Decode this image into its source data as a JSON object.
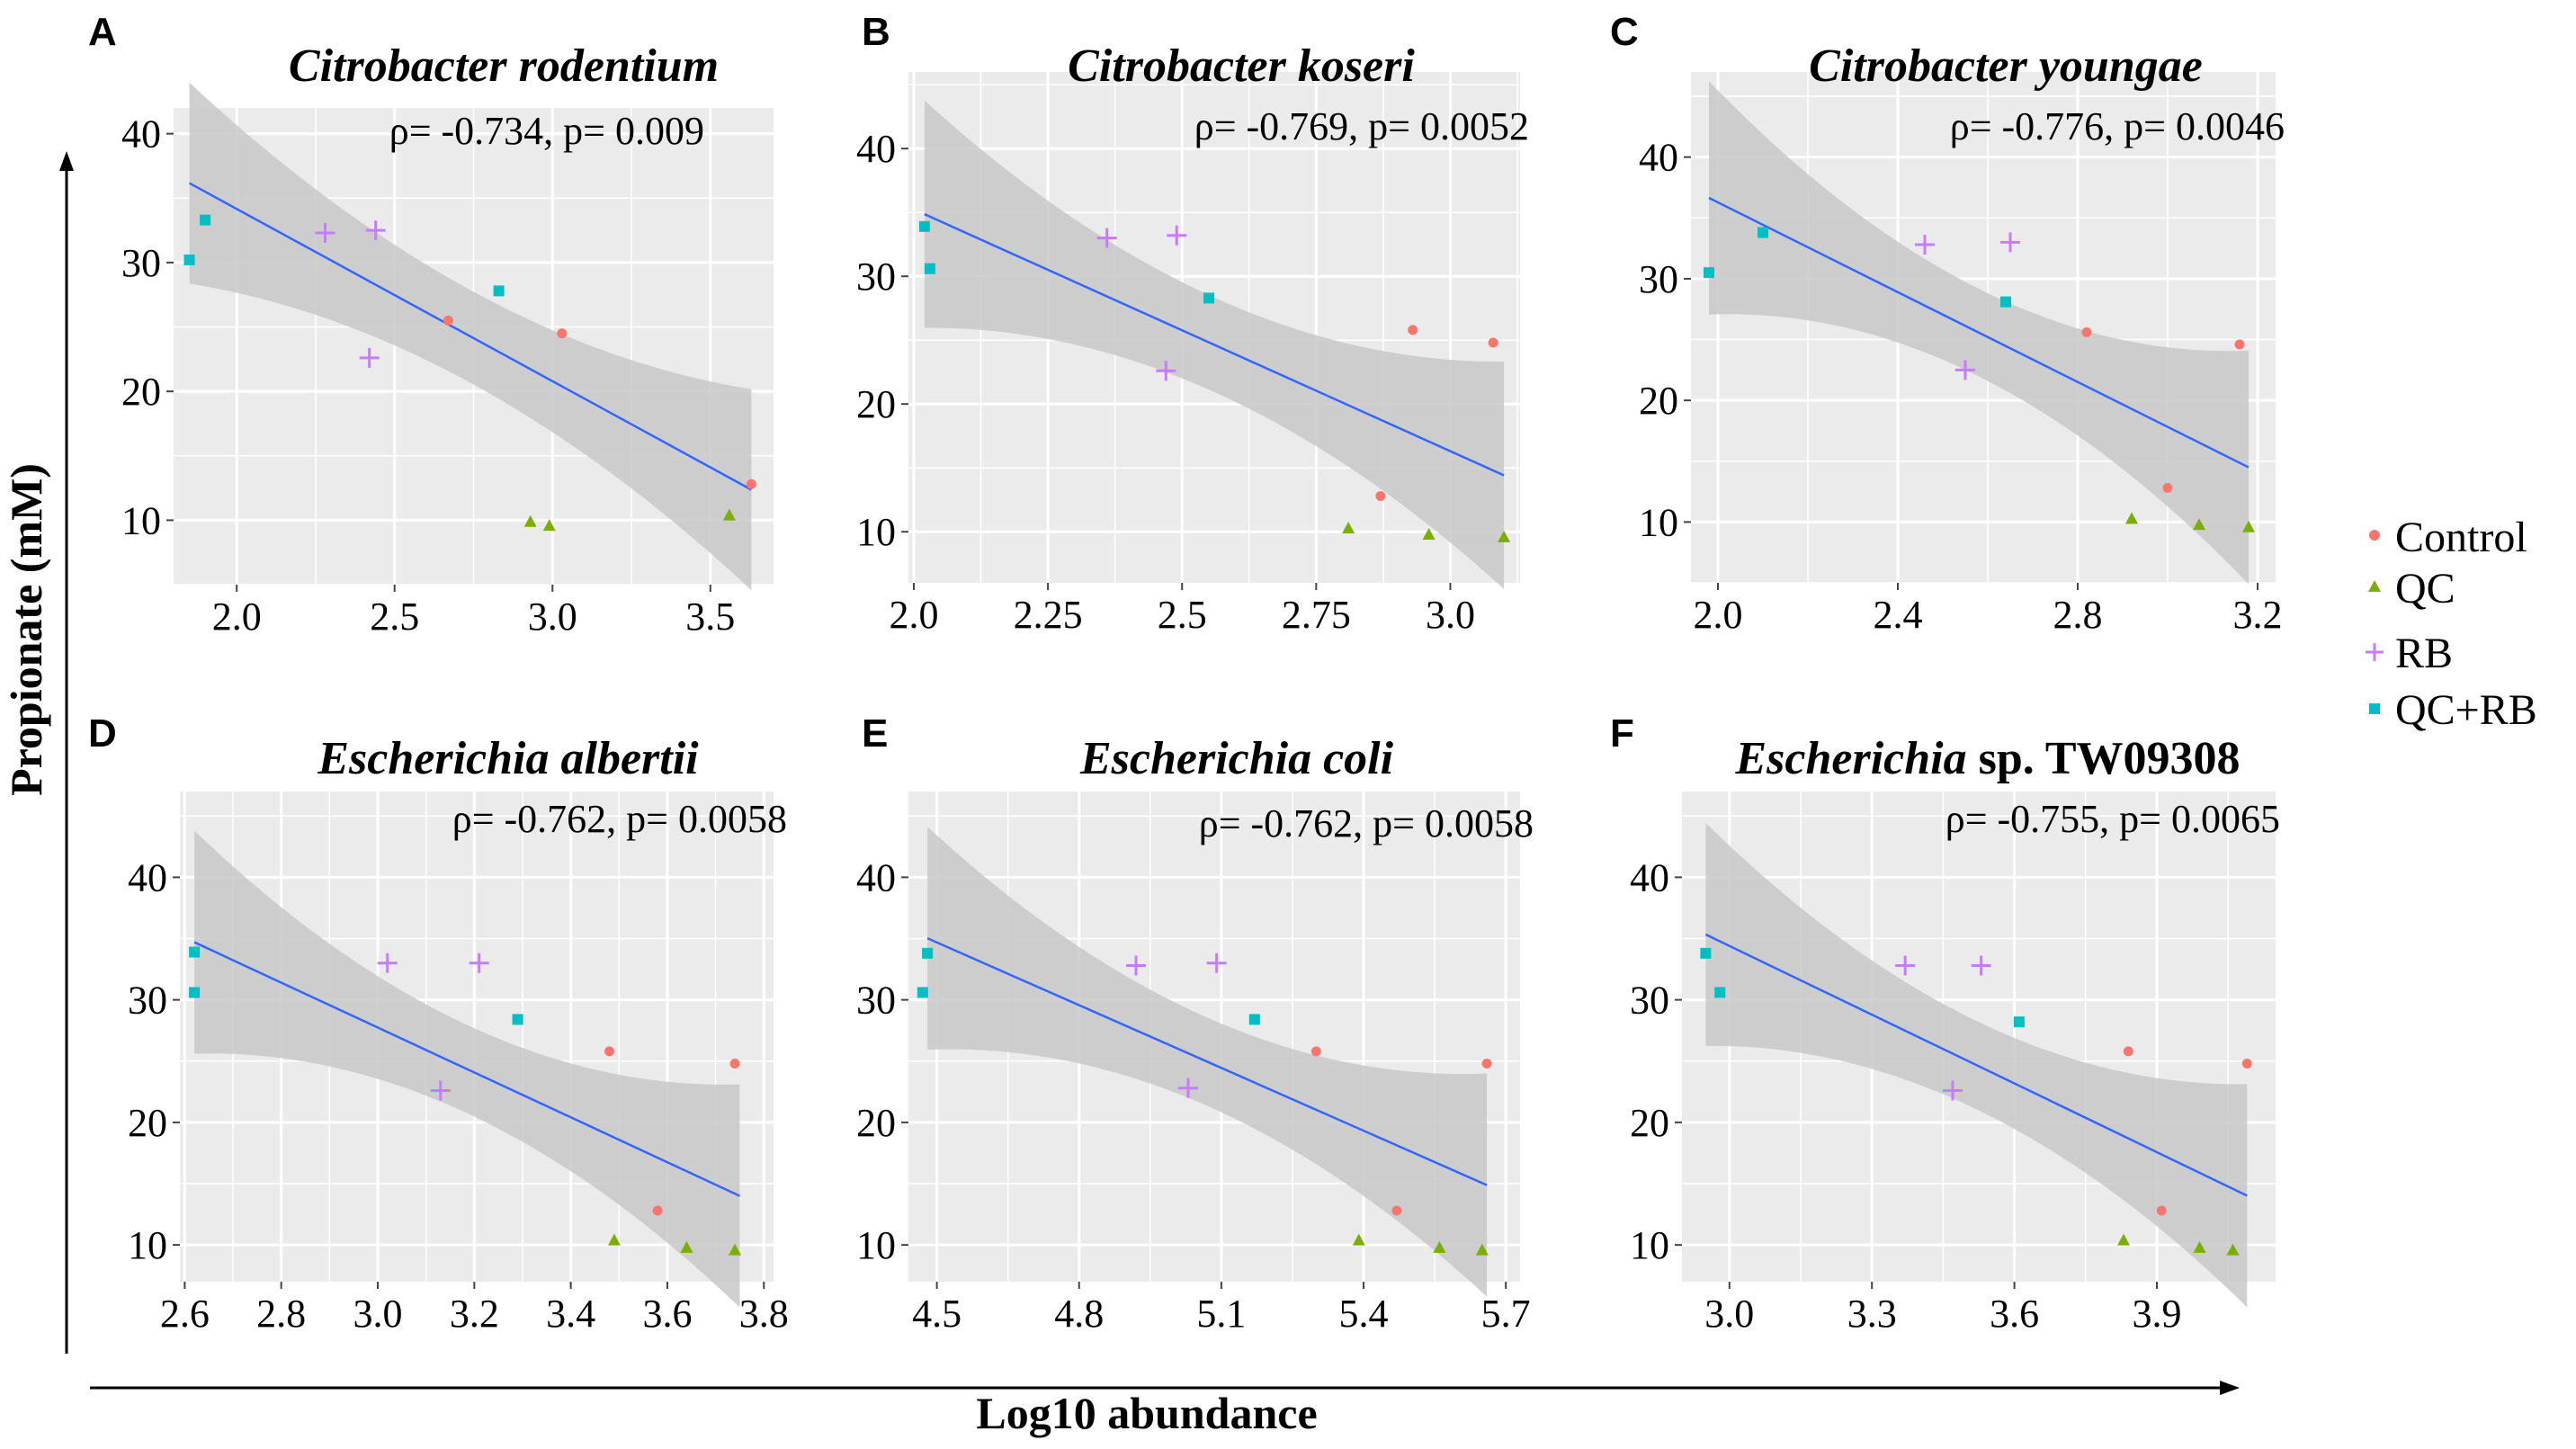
{
  "figure": {
    "y_axis_label": "Propionate (mM)",
    "x_axis_label": "Log10 abundance",
    "legend": [
      {
        "name": "Control",
        "color": "#F8766D",
        "shape": "circle"
      },
      {
        "name": "QC",
        "color": "#7CAE00",
        "shape": "triangle"
      },
      {
        "name": "RB",
        "color": "#C77CFF",
        "shape": "cross"
      },
      {
        "name": "QC+RB",
        "color": "#00BFC4",
        "shape": "square"
      }
    ],
    "colors": {
      "panel_bg": "#EBEBEB",
      "grid": "#FFFFFF",
      "ribbon": "#C8C8C8",
      "fit_line": "#3366FF"
    }
  },
  "chart_data": [
    {
      "letter": "A",
      "type": "scatter",
      "title": "Citrobacter rodentium",
      "stat": "ρ= -0.734, p= 0.009",
      "xlim": [
        1.8,
        3.7
      ],
      "ylim": [
        5,
        42
      ],
      "xticks": [
        2.0,
        2.5,
        3.0,
        3.5
      ],
      "xtick_labels": [
        "2.0",
        "2.5",
        "3.0",
        "3.5"
      ],
      "yticks": [
        10,
        20,
        30,
        40
      ],
      "ytick_labels": [
        "10",
        "20",
        "30",
        "40"
      ],
      "fit": {
        "slope": -13.37,
        "intercept": 60.9
      },
      "band": {
        "xmin": 1.85,
        "xmax": 3.63,
        "se_min": 3.6,
        "se_max": 7.8
      },
      "series": [
        {
          "name": "Control",
          "x": [
            2.67,
            3.03,
            3.63
          ],
          "y": [
            25.5,
            24.5,
            12.8
          ]
        },
        {
          "name": "QC",
          "x": [
            2.93,
            2.99,
            3.56
          ],
          "y": [
            9.9,
            9.6,
            10.4
          ]
        },
        {
          "name": "RB",
          "x": [
            2.28,
            2.44,
            2.42
          ],
          "y": [
            32.3,
            32.5,
            22.6
          ]
        },
        {
          "name": "QC+RB",
          "x": [
            1.85,
            1.9,
            2.83
          ],
          "y": [
            30.2,
            33.3,
            27.8
          ]
        }
      ]
    },
    {
      "letter": "B",
      "type": "scatter",
      "title": "Citrobacter koseri",
      "stat": "ρ= -0.769, p= 0.0052",
      "xlim": [
        1.99,
        3.13
      ],
      "ylim": [
        6,
        46
      ],
      "xticks": [
        2.0,
        2.25,
        2.5,
        2.75,
        3.0
      ],
      "xtick_labels": [
        "2.0",
        "2.25",
        "2.5",
        "2.75",
        "3.0"
      ],
      "yticks": [
        10,
        20,
        30,
        40
      ],
      "ytick_labels": [
        "10",
        "20",
        "30",
        "40"
      ],
      "fit": {
        "slope": -18.93,
        "intercept": 73.1
      },
      "band": {
        "xmin": 2.02,
        "xmax": 3.1,
        "se_min": 3.7,
        "se_max": 8.9
      },
      "series": [
        {
          "name": "Control",
          "x": [
            2.87,
            2.93,
            3.08
          ],
          "y": [
            12.8,
            25.8,
            24.8
          ]
        },
        {
          "name": "QC",
          "x": [
            2.81,
            2.96,
            3.1
          ],
          "y": [
            10.3,
            9.8,
            9.6
          ]
        },
        {
          "name": "RB",
          "x": [
            2.36,
            2.49,
            2.47
          ],
          "y": [
            33,
            33.2,
            22.6
          ]
        },
        {
          "name": "QC+RB",
          "x": [
            2.02,
            2.03,
            2.55
          ],
          "y": [
            33.9,
            30.6,
            28.3
          ]
        }
      ]
    },
    {
      "letter": "C",
      "type": "scatter",
      "title": "Citrobacter youngae",
      "stat": "ρ= -0.776, p= 0.0046",
      "xlim": [
        1.94,
        3.24
      ],
      "ylim": [
        5,
        47
      ],
      "xticks": [
        2.0,
        2.4,
        2.8,
        3.2
      ],
      "xtick_labels": [
        "2.0",
        "2.4",
        "2.8",
        "3.2"
      ],
      "yticks": [
        10,
        20,
        30,
        40
      ],
      "ytick_labels": [
        "10",
        "20",
        "30",
        "40"
      ],
      "fit": {
        "slope": -18.46,
        "intercept": 73.2
      },
      "band": {
        "xmin": 1.98,
        "xmax": 3.18,
        "se_min": 3.6,
        "se_max": 9.6
      },
      "series": [
        {
          "name": "Control",
          "x": [
            2.82,
            3.0,
            3.16
          ],
          "y": [
            25.6,
            12.8,
            24.6
          ]
        },
        {
          "name": "QC",
          "x": [
            2.92,
            3.07,
            3.18
          ],
          "y": [
            10.3,
            9.8,
            9.6
          ]
        },
        {
          "name": "RB",
          "x": [
            2.46,
            2.55,
            2.65
          ],
          "y": [
            32.8,
            22.5,
            33
          ]
        },
        {
          "name": "QC+RB",
          "x": [
            1.98,
            2.1,
            2.64
          ],
          "y": [
            30.5,
            33.8,
            28.1
          ]
        }
      ]
    },
    {
      "letter": "D",
      "type": "scatter",
      "title": "Escherichia albertii",
      "stat": "ρ= -0.762, p= 0.0058",
      "xlim": [
        2.59,
        3.82
      ],
      "ylim": [
        7,
        47
      ],
      "xticks": [
        2.6,
        2.8,
        3.0,
        3.2,
        3.4,
        3.6,
        3.8
      ],
      "xtick_labels": [
        "2.6",
        "2.8",
        "3.0",
        "3.2",
        "3.4",
        "3.6",
        "3.8"
      ],
      "yticks": [
        10,
        20,
        30,
        40
      ],
      "ytick_labels": [
        "10",
        "20",
        "30",
        "40"
      ],
      "fit": {
        "slope": -18.32,
        "intercept": 82.7
      },
      "band": {
        "xmin": 2.62,
        "xmax": 3.75,
        "se_min": 3.6,
        "se_max": 9.1
      },
      "series": [
        {
          "name": "Control",
          "x": [
            3.48,
            3.58,
            3.74
          ],
          "y": [
            25.8,
            12.8,
            24.8
          ]
        },
        {
          "name": "QC",
          "x": [
            3.49,
            3.64,
            3.74
          ],
          "y": [
            10.4,
            9.8,
            9.6
          ]
        },
        {
          "name": "RB",
          "x": [
            3.02,
            3.21,
            3.13
          ],
          "y": [
            33,
            33,
            22.6
          ]
        },
        {
          "name": "QC+RB",
          "x": [
            2.62,
            2.62,
            3.29
          ],
          "y": [
            33.9,
            30.6,
            28.4
          ]
        }
      ]
    },
    {
      "letter": "E",
      "type": "scatter",
      "title": "Escherichia coli",
      "stat": "ρ= -0.762, p= 0.0058",
      "xlim": [
        4.44,
        5.73
      ],
      "ylim": [
        7,
        47
      ],
      "xticks": [
        4.5,
        4.8,
        5.1,
        5.4,
        5.7
      ],
      "xtick_labels": [
        "4.5",
        "4.8",
        "5.1",
        "5.4",
        "5.7"
      ],
      "yticks": [
        10,
        20,
        30,
        40
      ],
      "ytick_labels": [
        "10",
        "20",
        "30",
        "40"
      ],
      "fit": {
        "slope": -17.07,
        "intercept": 111.5
      },
      "band": {
        "xmin": 4.48,
        "xmax": 5.66,
        "se_min": 3.6,
        "se_max": 9.1
      },
      "series": [
        {
          "name": "Control",
          "x": [
            5.3,
            5.47,
            5.66
          ],
          "y": [
            25.8,
            12.8,
            24.8
          ]
        },
        {
          "name": "QC",
          "x": [
            5.39,
            5.56,
            5.65
          ],
          "y": [
            10.4,
            9.8,
            9.6
          ]
        },
        {
          "name": "RB",
          "x": [
            4.92,
            5.09,
            5.03
          ],
          "y": [
            32.8,
            33,
            22.8
          ]
        },
        {
          "name": "QC+RB",
          "x": [
            4.48,
            4.47,
            5.17
          ],
          "y": [
            33.8,
            30.6,
            28.4
          ]
        }
      ]
    },
    {
      "letter": "F",
      "type": "scatter",
      "title": "Escherichia",
      "title_suffix": " sp. TW09308",
      "stat": "ρ= -0.755, p= 0.0065",
      "xlim": [
        2.9,
        4.15
      ],
      "ylim": [
        7,
        47
      ],
      "xticks": [
        3.0,
        3.3,
        3.6,
        3.9
      ],
      "xtick_labels": [
        "3.0",
        "3.3",
        "3.6",
        "3.9"
      ],
      "yticks": [
        10,
        20,
        30,
        40
      ],
      "ytick_labels": [
        "10",
        "20",
        "30",
        "40"
      ],
      "fit": {
        "slope": -18.7,
        "intercept": 90.5
      },
      "band": {
        "xmin": 2.95,
        "xmax": 4.09,
        "se_min": 3.6,
        "se_max": 9.1
      },
      "series": [
        {
          "name": "Control",
          "x": [
            3.84,
            3.91,
            4.09
          ],
          "y": [
            25.8,
            12.8,
            24.8
          ]
        },
        {
          "name": "QC",
          "x": [
            3.83,
            3.99,
            4.06
          ],
          "y": [
            10.4,
            9.8,
            9.6
          ]
        },
        {
          "name": "RB",
          "x": [
            3.37,
            3.53,
            3.47
          ],
          "y": [
            32.8,
            32.8,
            22.6
          ]
        },
        {
          "name": "QC+RB",
          "x": [
            2.95,
            2.98,
            3.61
          ],
          "y": [
            33.8,
            30.6,
            28.2
          ]
        }
      ]
    }
  ]
}
